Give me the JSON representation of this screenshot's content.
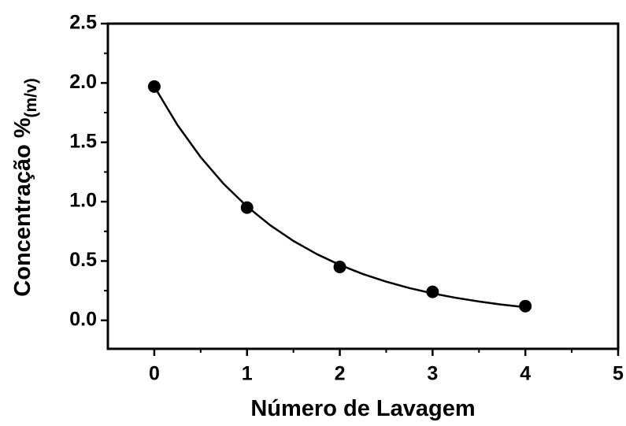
{
  "chart_data": {
    "type": "scatter",
    "x_label": "Número de Lavagem",
    "y_label": "Concentração %",
    "y_label_sub": "(m/v)",
    "series": [
      {
        "x": [
          0,
          1,
          2,
          3,
          4
        ],
        "values": [
          1.97,
          0.95,
          0.45,
          0.24,
          0.12
        ],
        "color": "#000000"
      },
      {
        "x": [
          0,
          0.25,
          0.5,
          0.75,
          1,
          1.25,
          1.5,
          1.75,
          2,
          2.25,
          2.5,
          2.75,
          3,
          3.25,
          3.5,
          3.75,
          4
        ],
        "values": [
          1.97,
          1.646,
          1.375,
          1.148,
          0.959,
          0.801,
          0.669,
          0.559,
          0.467,
          0.39,
          0.326,
          0.272,
          0.227,
          0.19,
          0.159,
          0.132,
          0.111
        ],
        "color": "#000000",
        "style": "line"
      }
    ],
    "xlim": [
      -0.5,
      5
    ],
    "ylim": [
      -0.24,
      2.5
    ],
    "xticks": [
      0,
      1,
      2,
      3,
      4,
      5
    ],
    "xminorticks": [
      0.5,
      1.5,
      2.5,
      3.5,
      4.5
    ],
    "yticks": [
      {
        "value": 0,
        "label": "0.0"
      },
      0.5,
      {
        "value": 1,
        "label": "1.0"
      },
      1.5,
      {
        "value": 2,
        "label": "2.0"
      },
      2.5
    ],
    "yminorticks": [
      0.25,
      0.75,
      1.25,
      1.75,
      2.25
    ]
  }
}
